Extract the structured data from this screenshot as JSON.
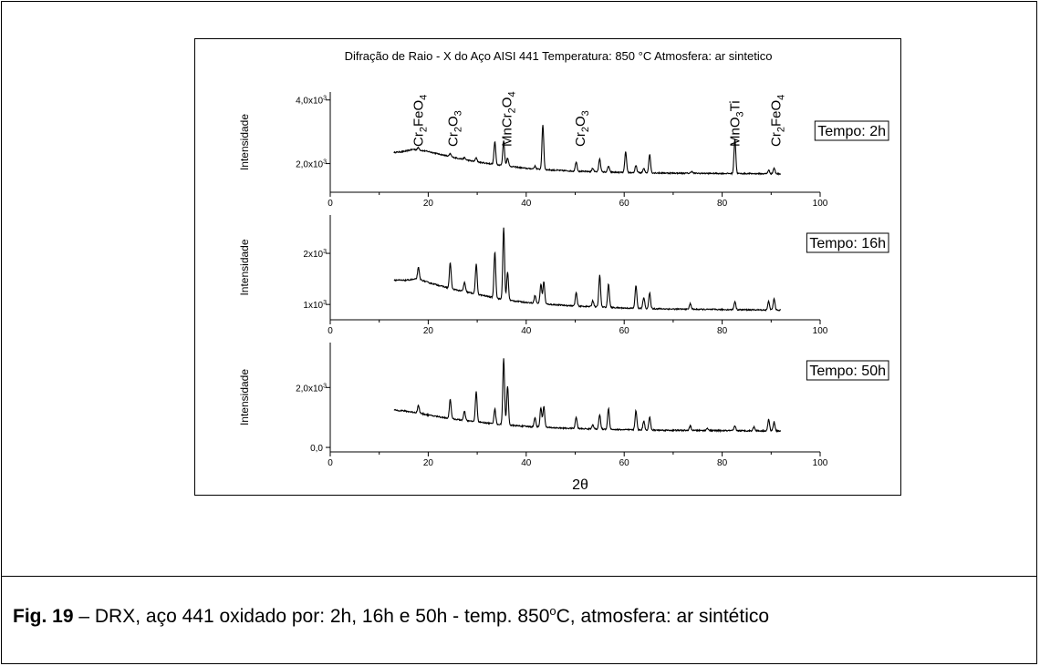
{
  "figure": {
    "title": "Difração de Raio - X do Aço AISI 441  Temperatura: 850 °C   Atmosfera: ar sintetico",
    "xlabel": "2θ"
  },
  "caption": {
    "fig_label": "Fig. 19",
    "dash": " – ",
    "text_before_deg": "DRX, aço 441 oxidado por: 2h, 16h e 50h -  temp. 850",
    "degree": "o",
    "text_after_deg": "C, atmosfera:  ar sintético"
  },
  "chart_data": [
    {
      "type": "line",
      "panel": "top",
      "ylabel": "Intensidade",
      "legend": "Tempo: 2h",
      "legend_position": "top-right",
      "xlim": [
        0,
        100
      ],
      "ylim": [
        1100,
        4250
      ],
      "x_ticks": [
        0,
        20,
        40,
        60,
        80,
        100
      ],
      "x_tick_labels": [
        "0",
        "20",
        "40",
        "60",
        "80",
        "100"
      ],
      "y_ticks": [
        {
          "value": 2000,
          "base": "2,0x10",
          "exp": "3"
        },
        {
          "value": 4000,
          "base": "4,0x10",
          "exp": "3"
        }
      ],
      "baseline": [
        [
          13,
          2350
        ],
        [
          15,
          2380
        ],
        [
          17,
          2450
        ],
        [
          20,
          2380
        ],
        [
          25,
          2200
        ],
        [
          30,
          2050
        ],
        [
          35,
          1950
        ],
        [
          40,
          1850
        ],
        [
          45,
          1800
        ],
        [
          50,
          1760
        ],
        [
          60,
          1720
        ],
        [
          70,
          1700
        ],
        [
          80,
          1690
        ],
        [
          92,
          1680
        ]
      ],
      "peaks": [
        [
          18,
          80
        ],
        [
          24.5,
          90
        ],
        [
          27.4,
          60
        ],
        [
          29.8,
          130
        ],
        [
          33.6,
          700
        ],
        [
          35.4,
          780
        ],
        [
          36.2,
          260
        ],
        [
          41.8,
          90
        ],
        [
          43.4,
          1400
        ],
        [
          50.2,
          300
        ],
        [
          53.6,
          110
        ],
        [
          55.0,
          420
        ],
        [
          56.8,
          190
        ],
        [
          60.3,
          650
        ],
        [
          62.4,
          220
        ],
        [
          64.0,
          130
        ],
        [
          65.2,
          580
        ],
        [
          73.8,
          60
        ],
        [
          82.6,
          1100
        ],
        [
          89.5,
          110
        ],
        [
          90.6,
          180
        ]
      ],
      "peak_annotations": [
        {
          "x": 18,
          "label": "Cr2FeO4",
          "parts": [
            [
              "Cr",
              ""
            ],
            [
              "2",
              "sub"
            ],
            [
              "FeO",
              ""
            ],
            [
              "4",
              "sub"
            ]
          ]
        },
        {
          "x": 25,
          "label": "Cr2O3",
          "parts": [
            [
              "Cr",
              ""
            ],
            [
              "2",
              "sub"
            ],
            [
              "O",
              ""
            ],
            [
              "3",
              "sub"
            ]
          ]
        },
        {
          "x": 36,
          "label": "MnCr2O4",
          "parts": [
            [
              "MnCr",
              ""
            ],
            [
              "2",
              "sub"
            ],
            [
              "O",
              ""
            ],
            [
              "4",
              "sub"
            ]
          ]
        },
        {
          "x": 51,
          "label": "Cr2O3",
          "parts": [
            [
              "Cr",
              ""
            ],
            [
              "2",
              "sub"
            ],
            [
              "O",
              ""
            ],
            [
              "3",
              "sub"
            ]
          ]
        },
        {
          "x": 82.6,
          "label": "MnO3Ti",
          "parts": [
            [
              "MnO",
              ""
            ],
            [
              "3",
              "sub"
            ],
            [
              "Ti",
              ""
            ]
          ]
        },
        {
          "x": 91,
          "label": "Cr2FeO4",
          "parts": [
            [
              "Cr",
              ""
            ],
            [
              "2",
              "sub"
            ],
            [
              "FeO",
              ""
            ],
            [
              "4",
              "sub"
            ]
          ]
        }
      ]
    },
    {
      "type": "line",
      "panel": "middle",
      "ylabel": "Intensidade",
      "legend": "Tempo: 16h",
      "legend_position": "top-right",
      "xlim": [
        0,
        100
      ],
      "ylim": [
        700,
        2750
      ],
      "x_ticks": [
        0,
        20,
        40,
        60,
        80,
        100
      ],
      "x_tick_labels": [
        "0",
        "20",
        "40",
        "60",
        "80",
        "100"
      ],
      "y_ticks": [
        {
          "value": 1000,
          "base": "1x10",
          "exp": "3"
        },
        {
          "value": 2000,
          "base": "2x10",
          "exp": "3"
        }
      ],
      "baseline": [
        [
          13,
          1480
        ],
        [
          15,
          1470
        ],
        [
          18,
          1500
        ],
        [
          20,
          1430
        ],
        [
          25,
          1300
        ],
        [
          30,
          1200
        ],
        [
          35,
          1100
        ],
        [
          40,
          1040
        ],
        [
          45,
          1000
        ],
        [
          50,
          970
        ],
        [
          60,
          930
        ],
        [
          70,
          910
        ],
        [
          80,
          900
        ],
        [
          92,
          890
        ]
      ],
      "peaks": [
        [
          18,
          220
        ],
        [
          24.5,
          500
        ],
        [
          27.4,
          180
        ],
        [
          29.8,
          580
        ],
        [
          33.6,
          900
        ],
        [
          35.4,
          1400
        ],
        [
          36.2,
          550
        ],
        [
          41.8,
          150
        ],
        [
          43.0,
          380
        ],
        [
          43.6,
          430
        ],
        [
          50.2,
          260
        ],
        [
          53.6,
          120
        ],
        [
          55.0,
          620
        ],
        [
          56.8,
          450
        ],
        [
          62.4,
          450
        ],
        [
          64.0,
          220
        ],
        [
          65.2,
          300
        ],
        [
          73.5,
          110
        ],
        [
          82.6,
          160
        ],
        [
          89.5,
          170
        ],
        [
          90.6,
          220
        ]
      ]
    },
    {
      "type": "line",
      "panel": "bottom",
      "ylabel": "Intensidade",
      "xlabel": "2θ",
      "legend": "Tempo: 50h",
      "legend_position": "top-right",
      "xlim": [
        0,
        100
      ],
      "ylim": [
        -150,
        3500
      ],
      "x_ticks": [
        0,
        20,
        40,
        60,
        80,
        100
      ],
      "x_tick_labels": [
        "0",
        "20",
        "40",
        "60",
        "80",
        "100"
      ],
      "y_ticks": [
        {
          "value": 0,
          "base": "0,0",
          "exp": ""
        },
        {
          "value": 2000,
          "base": "2,0x10",
          "exp": "3"
        }
      ],
      "baseline": [
        [
          13,
          1250
        ],
        [
          15,
          1220
        ],
        [
          18,
          1150
        ],
        [
          20,
          1080
        ],
        [
          25,
          950
        ],
        [
          30,
          850
        ],
        [
          35,
          760
        ],
        [
          40,
          700
        ],
        [
          45,
          660
        ],
        [
          50,
          630
        ],
        [
          60,
          590
        ],
        [
          70,
          570
        ],
        [
          80,
          560
        ],
        [
          92,
          550
        ]
      ],
      "peaks": [
        [
          18,
          250
        ],
        [
          24.5,
          650
        ],
        [
          27.4,
          300
        ],
        [
          29.8,
          1000
        ],
        [
          33.6,
          500
        ],
        [
          35.4,
          2200
        ],
        [
          36.2,
          1300
        ],
        [
          41.8,
          300
        ],
        [
          43.0,
          650
        ],
        [
          43.6,
          700
        ],
        [
          50.2,
          380
        ],
        [
          53.6,
          150
        ],
        [
          55.0,
          480
        ],
        [
          56.8,
          700
        ],
        [
          62.4,
          650
        ],
        [
          64.0,
          300
        ],
        [
          65.2,
          430
        ],
        [
          73.5,
          150
        ],
        [
          77,
          80
        ],
        [
          82.6,
          150
        ],
        [
          86.5,
          130
        ],
        [
          89.5,
          380
        ],
        [
          90.6,
          300
        ]
      ]
    }
  ]
}
